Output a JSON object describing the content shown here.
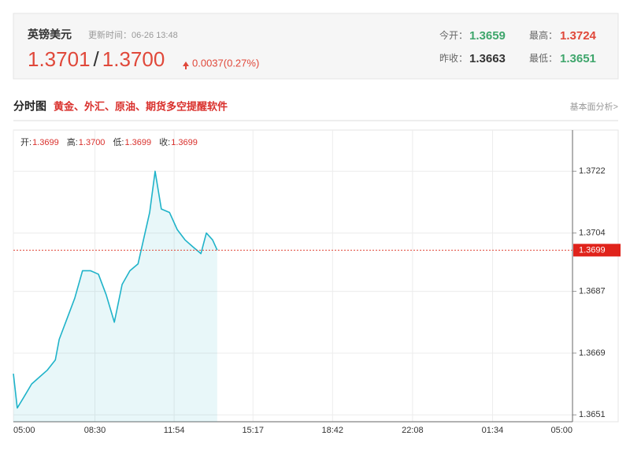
{
  "header": {
    "name": "英镑美元",
    "update_time": "更新时间：06-26 13:48",
    "bid": "1.3701",
    "separator": "/",
    "ask": "1.3700",
    "change": "0.0037(0.27%)",
    "stats": [
      {
        "label": "今开：",
        "value": "1.3659"
      },
      {
        "label": "最高：",
        "value": "1.3724"
      },
      {
        "label": "昨收：",
        "value": "1.3663"
      },
      {
        "label": "最低：",
        "value": "1.3651"
      }
    ]
  },
  "section": {
    "title": "分时图",
    "promo": "黄金、外汇、原油、期货多空提醒软件",
    "link": "基本面分析>"
  },
  "chart_data": {
    "type": "line",
    "ohlc": [
      {
        "label": "开:",
        "value": "1.3699"
      },
      {
        "label": "高:",
        "value": "1.3700"
      },
      {
        "label": "低:",
        "value": "1.3699"
      },
      {
        "label": "收:",
        "value": "1.3699"
      }
    ],
    "series": [
      {
        "color": "#1fb3c9",
        "x": [
          0,
          10,
          26,
          47,
          67,
          87,
          108,
          118,
          138,
          158,
          178,
          199,
          219,
          239,
          260,
          280,
          300,
          321,
          341,
          351,
          365,
          381,
          402,
          422,
          442,
          462,
          483,
          497,
          513,
          525
        ],
        "values": [
          1.3663,
          1.3653,
          1.3656,
          1.366,
          1.3662,
          1.3664,
          1.3667,
          1.3673,
          1.3679,
          1.3685,
          1.3693,
          1.3693,
          1.3692,
          1.3686,
          1.3678,
          1.3689,
          1.3693,
          1.3695,
          1.3705,
          1.371,
          1.3722,
          1.3711,
          1.371,
          1.3705,
          1.3702,
          1.37,
          1.3698,
          1.3704,
          1.3702,
          1.3699
        ]
      }
    ],
    "last_price": 1.3699,
    "xlim": [
      0,
      1440
    ],
    "xticks": [
      {
        "value": 0,
        "label": "05:00"
      },
      {
        "value": 210,
        "label": "08:30"
      },
      {
        "value": 414,
        "label": "11:54"
      },
      {
        "value": 617,
        "label": "15:17"
      },
      {
        "value": 822,
        "label": "18:42"
      },
      {
        "value": 1028,
        "label": "22:08"
      },
      {
        "value": 1234,
        "label": "01:34"
      },
      {
        "value": 1440,
        "label": "05:00"
      }
    ],
    "ylim": [
      1.3649,
      1.3734
    ],
    "yticks": [
      1.3651,
      1.3669,
      1.3687,
      1.3704,
      1.3722
    ],
    "grid": true
  }
}
